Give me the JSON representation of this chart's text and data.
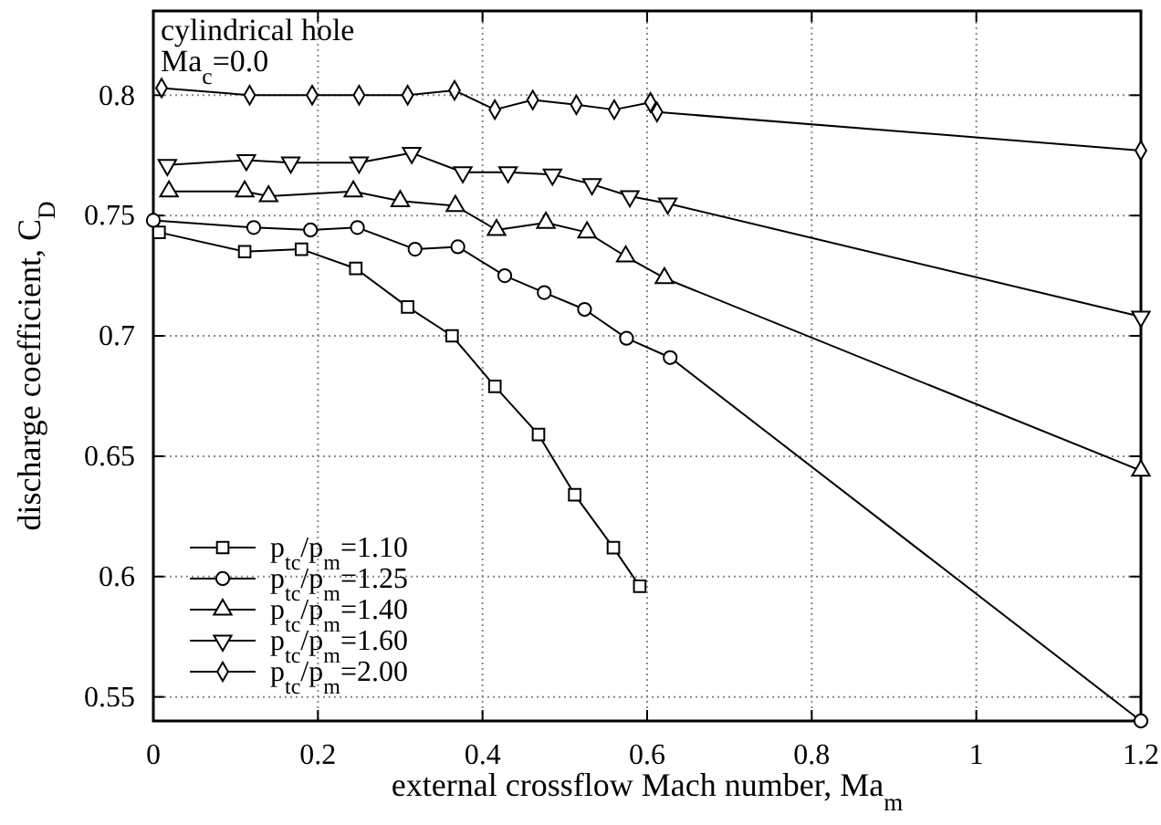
{
  "chart_data": {
    "type": "line",
    "xlabel": "external crossflow Mach number, Ma$_{m}$",
    "ylabel": "discharge coefficient, C$_{D}$",
    "annotations": [
      "cylindrical hole",
      "Ma$_{c}$=0.0"
    ],
    "xlim": [
      0,
      1.2
    ],
    "xticks": [
      0,
      0.2,
      0.4,
      0.6,
      0.8,
      1,
      1.2
    ],
    "ylim": [
      0.54,
      0.835
    ],
    "yticks": [
      0.55,
      0.6,
      0.65,
      0.7,
      0.75,
      0.8
    ],
    "grid": true,
    "legend": "bottom left",
    "line_style": "solid",
    "series": [
      {
        "name": "p$_{tc}$/p$_{m}$=1.10",
        "color": "#000000",
        "marker": "square",
        "x": [
          0.007,
          0.111,
          0.18,
          0.246,
          0.309,
          0.363,
          0.415,
          0.468,
          0.512,
          0.559,
          0.591
        ],
        "values": [
          0.743,
          0.735,
          0.736,
          0.728,
          0.712,
          0.7,
          0.679,
          0.659,
          0.634,
          0.612,
          0.596
        ]
      },
      {
        "name": "p$_{tc}$/p$_{m}$=1.25",
        "color": "#000000",
        "marker": "circle",
        "x": [
          0,
          0.122,
          0.191,
          0.248,
          0.318,
          0.37,
          0.427,
          0.475,
          0.524,
          0.575,
          0.628,
          1.2
        ],
        "values": [
          0.748,
          0.745,
          0.744,
          0.745,
          0.736,
          0.737,
          0.725,
          0.718,
          0.711,
          0.699,
          0.691,
          0.54
        ]
      },
      {
        "name": "p$_{tc}$/p$_{m}$=1.40",
        "color": "#000000",
        "marker": "triangle",
        "x": [
          0.019,
          0.111,
          0.14,
          0.243,
          0.3,
          0.367,
          0.417,
          0.477,
          0.527,
          0.574,
          0.621,
          1.2
        ],
        "values": [
          0.76,
          0.76,
          0.758,
          0.76,
          0.756,
          0.754,
          0.744,
          0.747,
          0.743,
          0.733,
          0.724,
          0.644
        ]
      },
      {
        "name": "p$_{tc}$/p$_{m}$=1.60",
        "color": "#000000",
        "marker": "triangle-down",
        "x": [
          0.017,
          0.113,
          0.167,
          0.25,
          0.314,
          0.376,
          0.431,
          0.485,
          0.533,
          0.579,
          0.625,
          1.2
        ],
        "values": [
          0.771,
          0.773,
          0.772,
          0.772,
          0.776,
          0.768,
          0.768,
          0.767,
          0.763,
          0.758,
          0.755,
          0.708
        ]
      },
      {
        "name": "p$_{tc}$/p$_{m}$=2.00",
        "color": "#000000",
        "marker": "diamond",
        "x": [
          0.01,
          0.117,
          0.193,
          0.25,
          0.309,
          0.366,
          0.415,
          0.461,
          0.514,
          0.56,
          0.604,
          0.612,
          1.2
        ],
        "values": [
          0.803,
          0.8,
          0.8,
          0.8,
          0.8,
          0.802,
          0.794,
          0.798,
          0.796,
          0.794,
          0.797,
          0.793,
          0.777
        ]
      }
    ]
  }
}
